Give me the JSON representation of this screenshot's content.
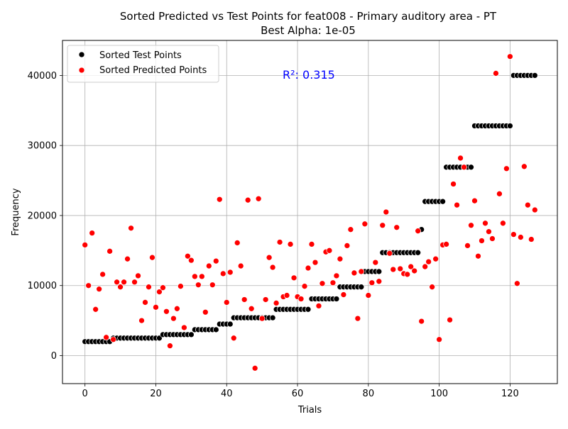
{
  "chart_data": {
    "type": "scatter",
    "title": "Sorted Predicted vs Test Points for feat008 - Primary auditory area - PT",
    "subtitle": "Best Alpha: 1e-05",
    "xlabel": "Trials",
    "ylabel": "Frequency",
    "xlim": [
      -6.35,
      133.35
    ],
    "ylim": [
      -4000,
      45000
    ],
    "x_ticks": [
      0,
      20,
      40,
      60,
      80,
      100,
      120
    ],
    "y_ticks": [
      0,
      10000,
      20000,
      30000,
      40000
    ],
    "grid": true,
    "legend_position": "upper-left",
    "annotation": {
      "text": "R²: 0.315",
      "color": "#0000ff"
    },
    "series": [
      {
        "name": "Sorted Test Points",
        "color": "#000000",
        "x": [
          0,
          1,
          2,
          3,
          4,
          5,
          6,
          7,
          8,
          9,
          10,
          11,
          12,
          13,
          14,
          15,
          16,
          17,
          18,
          19,
          20,
          21,
          22,
          23,
          24,
          25,
          26,
          27,
          28,
          29,
          30,
          31,
          32,
          33,
          34,
          35,
          36,
          37,
          38,
          39,
          40,
          41,
          42,
          43,
          44,
          45,
          46,
          47,
          48,
          49,
          50,
          51,
          52,
          53,
          54,
          55,
          56,
          57,
          58,
          59,
          60,
          61,
          62,
          63,
          64,
          65,
          66,
          67,
          68,
          69,
          70,
          71,
          72,
          73,
          74,
          75,
          76,
          77,
          78,
          79,
          80,
          81,
          82,
          83,
          84,
          85,
          86,
          87,
          88,
          89,
          90,
          91,
          92,
          93,
          94,
          95,
          96,
          97,
          98,
          99,
          100,
          101,
          102,
          103,
          104,
          105,
          106,
          107,
          108,
          109,
          110,
          111,
          112,
          113,
          114,
          115,
          116,
          117,
          118,
          119,
          120,
          121,
          122,
          123,
          124,
          125,
          126,
          127
        ],
        "y": [
          2000,
          2000,
          2000,
          2000,
          2000,
          2000,
          2000,
          2000,
          2500,
          2500,
          2500,
          2500,
          2500,
          2500,
          2500,
          2500,
          2500,
          2500,
          2500,
          2500,
          2500,
          2500,
          3000,
          3000,
          3000,
          3000,
          3000,
          3000,
          3000,
          3000,
          3000,
          3700,
          3700,
          3700,
          3700,
          3700,
          3700,
          3700,
          4500,
          4500,
          4500,
          4500,
          5400,
          5400,
          5400,
          5400,
          5400,
          5400,
          5400,
          5400,
          5400,
          5400,
          5400,
          5400,
          6600,
          6600,
          6600,
          6600,
          6600,
          6600,
          6600,
          6600,
          6600,
          6600,
          8100,
          8100,
          8100,
          8100,
          8100,
          8100,
          8100,
          8100,
          9800,
          9800,
          9800,
          9800,
          9800,
          9800,
          9800,
          12000,
          12000,
          12000,
          12000,
          12000,
          14700,
          14700,
          14700,
          14700,
          14700,
          14700,
          14700,
          14700,
          14700,
          14700,
          14700,
          18000,
          22000,
          22000,
          22000,
          22000,
          22000,
          22000,
          26900,
          26900,
          26900,
          26900,
          26900,
          26900,
          26900,
          26900,
          32800,
          32800,
          32800,
          32800,
          32800,
          32800,
          32800,
          32800,
          32800,
          32800,
          32800,
          40000,
          40000,
          40000,
          40000,
          40000,
          40000,
          40000
        ]
      },
      {
        "name": "Sorted Predicted Points",
        "color": "#ff0000",
        "x": [
          0,
          1,
          2,
          3,
          4,
          5,
          6,
          7,
          8,
          9,
          10,
          11,
          12,
          13,
          14,
          15,
          16,
          17,
          18,
          19,
          20,
          21,
          22,
          23,
          24,
          25,
          26,
          27,
          28,
          29,
          30,
          31,
          32,
          33,
          34,
          35,
          36,
          37,
          38,
          39,
          40,
          41,
          42,
          43,
          44,
          45,
          46,
          47,
          48,
          49,
          50,
          51,
          52,
          53,
          54,
          55,
          56,
          57,
          58,
          59,
          60,
          61,
          62,
          63,
          64,
          65,
          66,
          67,
          68,
          69,
          70,
          71,
          72,
          73,
          74,
          75,
          76,
          77,
          78,
          79,
          80,
          81,
          82,
          83,
          84,
          85,
          86,
          87,
          88,
          89,
          90,
          91,
          92,
          93,
          94,
          95,
          96,
          97,
          98,
          99,
          100,
          101,
          102,
          103,
          104,
          105,
          106,
          107,
          108,
          109,
          110,
          111,
          112,
          113,
          114,
          115,
          116,
          117,
          118,
          119,
          120,
          121,
          122,
          123,
          124,
          125,
          126,
          127
        ],
        "y": [
          15800,
          10000,
          17500,
          6600,
          9500,
          11600,
          2600,
          14900,
          2300,
          10500,
          9800,
          10500,
          13800,
          18200,
          10500,
          11400,
          5000,
          7600,
          9800,
          14000,
          6900,
          9100,
          9700,
          6300,
          1400,
          5300,
          6700,
          9900,
          4000,
          14200,
          13600,
          11300,
          10100,
          11300,
          6200,
          12800,
          10100,
          13500,
          22300,
          11700,
          7600,
          11900,
          2500,
          16100,
          12800,
          8000,
          22200,
          6700,
          -1800,
          22400,
          5300,
          8000,
          14000,
          12600,
          7500,
          16200,
          8400,
          8600,
          15900,
          11100,
          8400,
          8100,
          9900,
          12500,
          15900,
          13300,
          7100,
          10300,
          14800,
          15000,
          10400,
          11400,
          13800,
          8700,
          15700,
          18000,
          11800,
          5300,
          12000,
          18800,
          8600,
          10400,
          13300,
          10600,
          18600,
          20500,
          14600,
          12300,
          18300,
          12400,
          11700,
          11600,
          12700,
          12100,
          17800,
          4900,
          12700,
          13400,
          9800,
          13800,
          2300,
          15800,
          15900,
          5100,
          24500,
          21500,
          28200,
          26900,
          15700,
          18600,
          22100,
          14200,
          16400,
          18900,
          17700,
          16700,
          40300,
          23100,
          18900,
          26700,
          42700,
          17300,
          10300,
          16900,
          27000,
          21500,
          16600,
          20800
        ]
      }
    ]
  }
}
